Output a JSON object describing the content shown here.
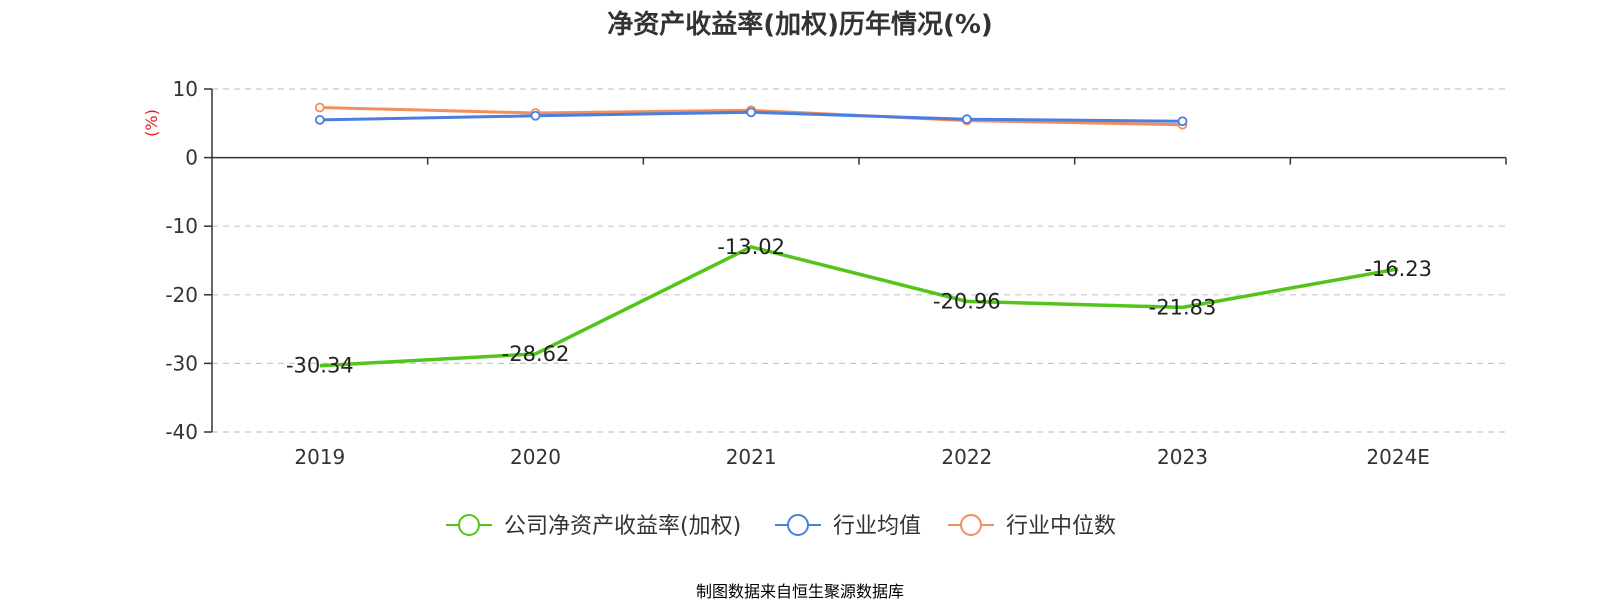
{
  "chart_data": {
    "type": "line",
    "title": "净资产收益率(加权)历年情况(%)",
    "ylabel": "(%)",
    "xlabel": "",
    "categories": [
      "2019",
      "2020",
      "2021",
      "2022",
      "2023",
      "2024E"
    ],
    "y_ticks": [
      10,
      0,
      -10,
      -20,
      -30,
      -40
    ],
    "ylim": [
      -40,
      10
    ],
    "grid": true,
    "legend_position": "bottom",
    "series": [
      {
        "name": "公司净资产收益率(加权)",
        "color": "#52c41a",
        "values": [
          -30.34,
          -28.62,
          -13.02,
          -20.96,
          -21.83,
          -16.23
        ],
        "labels": [
          "-30.34",
          "-28.62",
          "-13.02",
          "-20.96",
          "-21.83",
          "-16.23"
        ]
      },
      {
        "name": "行业均值",
        "color": "#4a7ee0",
        "values": [
          5.5,
          6.1,
          6.6,
          5.6,
          5.3,
          null
        ]
      },
      {
        "name": "行业中位数",
        "color": "#f28e5b",
        "values": [
          7.3,
          6.5,
          6.9,
          5.4,
          4.8,
          null
        ]
      }
    ]
  },
  "colors": {
    "ylabel": "#e02020",
    "source": "#c8a23a"
  },
  "source_text": "制图数据来自恒生聚源数据库"
}
